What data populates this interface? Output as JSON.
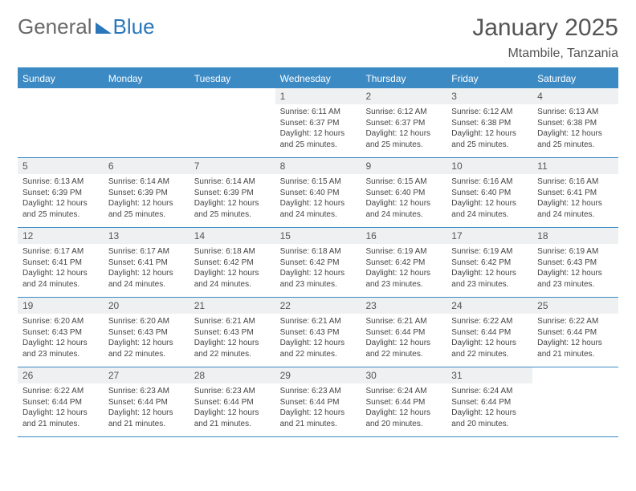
{
  "logo": {
    "text1": "General",
    "text2": "Blue"
  },
  "title": {
    "month": "January 2025",
    "location": "Mtambile, Tanzania"
  },
  "colors": {
    "accent": "#3b8ac4",
    "day_bg": "#eef0f1",
    "text": "#444444",
    "header_text": "#555555"
  },
  "days_of_week": [
    "Sunday",
    "Monday",
    "Tuesday",
    "Wednesday",
    "Thursday",
    "Friday",
    "Saturday"
  ],
  "weeks": [
    [
      null,
      null,
      null,
      {
        "n": "1",
        "sr": "6:11 AM",
        "ss": "6:37 PM",
        "dl": "12 hours and 25 minutes."
      },
      {
        "n": "2",
        "sr": "6:12 AM",
        "ss": "6:37 PM",
        "dl": "12 hours and 25 minutes."
      },
      {
        "n": "3",
        "sr": "6:12 AM",
        "ss": "6:38 PM",
        "dl": "12 hours and 25 minutes."
      },
      {
        "n": "4",
        "sr": "6:13 AM",
        "ss": "6:38 PM",
        "dl": "12 hours and 25 minutes."
      }
    ],
    [
      {
        "n": "5",
        "sr": "6:13 AM",
        "ss": "6:39 PM",
        "dl": "12 hours and 25 minutes."
      },
      {
        "n": "6",
        "sr": "6:14 AM",
        "ss": "6:39 PM",
        "dl": "12 hours and 25 minutes."
      },
      {
        "n": "7",
        "sr": "6:14 AM",
        "ss": "6:39 PM",
        "dl": "12 hours and 25 minutes."
      },
      {
        "n": "8",
        "sr": "6:15 AM",
        "ss": "6:40 PM",
        "dl": "12 hours and 24 minutes."
      },
      {
        "n": "9",
        "sr": "6:15 AM",
        "ss": "6:40 PM",
        "dl": "12 hours and 24 minutes."
      },
      {
        "n": "10",
        "sr": "6:16 AM",
        "ss": "6:40 PM",
        "dl": "12 hours and 24 minutes."
      },
      {
        "n": "11",
        "sr": "6:16 AM",
        "ss": "6:41 PM",
        "dl": "12 hours and 24 minutes."
      }
    ],
    [
      {
        "n": "12",
        "sr": "6:17 AM",
        "ss": "6:41 PM",
        "dl": "12 hours and 24 minutes."
      },
      {
        "n": "13",
        "sr": "6:17 AM",
        "ss": "6:41 PM",
        "dl": "12 hours and 24 minutes."
      },
      {
        "n": "14",
        "sr": "6:18 AM",
        "ss": "6:42 PM",
        "dl": "12 hours and 24 minutes."
      },
      {
        "n": "15",
        "sr": "6:18 AM",
        "ss": "6:42 PM",
        "dl": "12 hours and 23 minutes."
      },
      {
        "n": "16",
        "sr": "6:19 AM",
        "ss": "6:42 PM",
        "dl": "12 hours and 23 minutes."
      },
      {
        "n": "17",
        "sr": "6:19 AM",
        "ss": "6:42 PM",
        "dl": "12 hours and 23 minutes."
      },
      {
        "n": "18",
        "sr": "6:19 AM",
        "ss": "6:43 PM",
        "dl": "12 hours and 23 minutes."
      }
    ],
    [
      {
        "n": "19",
        "sr": "6:20 AM",
        "ss": "6:43 PM",
        "dl": "12 hours and 23 minutes."
      },
      {
        "n": "20",
        "sr": "6:20 AM",
        "ss": "6:43 PM",
        "dl": "12 hours and 22 minutes."
      },
      {
        "n": "21",
        "sr": "6:21 AM",
        "ss": "6:43 PM",
        "dl": "12 hours and 22 minutes."
      },
      {
        "n": "22",
        "sr": "6:21 AM",
        "ss": "6:43 PM",
        "dl": "12 hours and 22 minutes."
      },
      {
        "n": "23",
        "sr": "6:21 AM",
        "ss": "6:44 PM",
        "dl": "12 hours and 22 minutes."
      },
      {
        "n": "24",
        "sr": "6:22 AM",
        "ss": "6:44 PM",
        "dl": "12 hours and 22 minutes."
      },
      {
        "n": "25",
        "sr": "6:22 AM",
        "ss": "6:44 PM",
        "dl": "12 hours and 21 minutes."
      }
    ],
    [
      {
        "n": "26",
        "sr": "6:22 AM",
        "ss": "6:44 PM",
        "dl": "12 hours and 21 minutes."
      },
      {
        "n": "27",
        "sr": "6:23 AM",
        "ss": "6:44 PM",
        "dl": "12 hours and 21 minutes."
      },
      {
        "n": "28",
        "sr": "6:23 AM",
        "ss": "6:44 PM",
        "dl": "12 hours and 21 minutes."
      },
      {
        "n": "29",
        "sr": "6:23 AM",
        "ss": "6:44 PM",
        "dl": "12 hours and 21 minutes."
      },
      {
        "n": "30",
        "sr": "6:24 AM",
        "ss": "6:44 PM",
        "dl": "12 hours and 20 minutes."
      },
      {
        "n": "31",
        "sr": "6:24 AM",
        "ss": "6:44 PM",
        "dl": "12 hours and 20 minutes."
      },
      null
    ]
  ],
  "labels": {
    "sunrise": "Sunrise:",
    "sunset": "Sunset:",
    "daylight": "Daylight:"
  }
}
